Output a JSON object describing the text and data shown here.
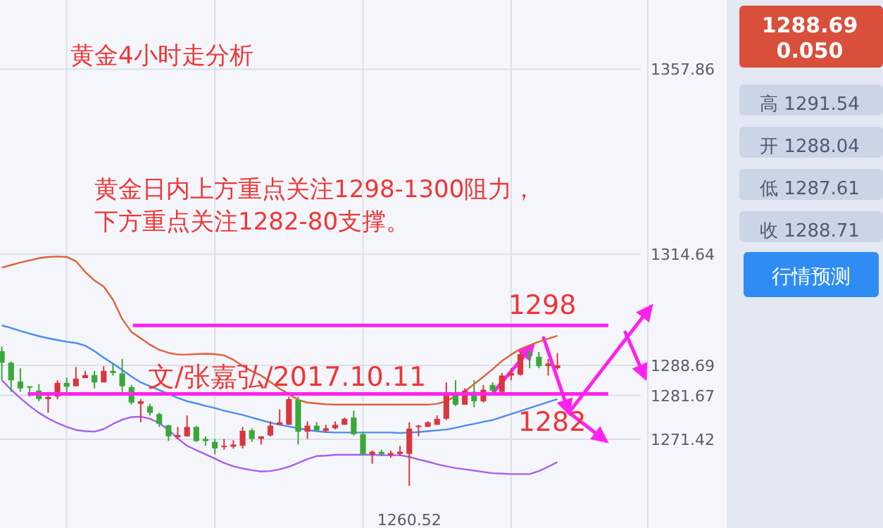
{
  "chart_data": {
    "type": "candlestick",
    "title": "黄金4小时走分析",
    "categories": [
      null,
      null,
      null,
      null,
      null,
      null,
      null,
      null,
      null,
      null,
      null,
      null,
      null,
      null,
      null,
      null,
      null,
      null,
      null,
      null,
      null,
      null,
      null,
      null,
      null,
      null,
      null,
      null,
      null,
      null,
      null,
      null,
      null,
      null,
      null,
      null,
      null,
      null,
      null,
      null,
      null,
      null,
      null,
      null,
      null,
      null,
      null,
      null,
      null,
      null,
      null,
      null,
      null,
      null,
      null,
      null,
      null,
      null,
      null,
      null,
      null
    ],
    "ohlc": [
      [
        1292.0,
        1293.1,
        1285.2,
        1289.3
      ],
      [
        1289.3,
        1289.6,
        1282.5,
        1285.2
      ],
      [
        1284.9,
        1288.0,
        1282.5,
        1283.3
      ],
      [
        1283.8,
        1283.8,
        1281.4,
        1283.5
      ],
      [
        1282.8,
        1284.3,
        1280.3,
        1280.8
      ],
      [
        1280.8,
        1282.5,
        1277.6,
        1281.3
      ],
      [
        1281.4,
        1285.2,
        1280.8,
        1284.6
      ],
      [
        1284.6,
        1285.8,
        1281.9,
        1283.7
      ],
      [
        1283.8,
        1288.3,
        1283.8,
        1285.6
      ],
      [
        1285.7,
        1287.4,
        1285.7,
        1286.4
      ],
      [
        1286.4,
        1287.4,
        1283.3,
        1284.7
      ],
      [
        1284.7,
        1288.5,
        1284.7,
        1287.4
      ],
      [
        1287.4,
        1289.1,
        1286.3,
        1286.9
      ],
      [
        1286.8,
        1290.2,
        1281.9,
        1283.8
      ],
      [
        1283.6,
        1284.1,
        1279.5,
        1280.0
      ],
      [
        1279.7,
        1280.8,
        1275.4,
        1280.3
      ],
      [
        1279.1,
        1279.7,
        1277.0,
        1277.6
      ],
      [
        1277.3,
        1277.6,
        1274.3,
        1275.0
      ],
      [
        1274.7,
        1274.8,
        1271.0,
        1272.1
      ],
      [
        1271.9,
        1274.3,
        1271.5,
        1272.4
      ],
      [
        1272.1,
        1277.0,
        1272.1,
        1274.3
      ],
      [
        1274.3,
        1274.5,
        1270.8,
        1271.0
      ],
      [
        1271.5,
        1272.1,
        1269.9,
        1271.0
      ],
      [
        1270.8,
        1271.5,
        1267.9,
        1269.3
      ],
      [
        1269.6,
        1271.5,
        1269.0,
        1269.9
      ],
      [
        1269.7,
        1271.2,
        1269.2,
        1270.2
      ],
      [
        1269.9,
        1274.3,
        1269.3,
        1273.4
      ],
      [
        1273.5,
        1274.0,
        1270.8,
        1271.5
      ],
      [
        1271.5,
        1272.1,
        1270.2,
        1272.1
      ],
      [
        1272.3,
        1275.6,
        1272.1,
        1274.6
      ],
      [
        1274.8,
        1278.4,
        1274.8,
        1275.4
      ],
      [
        1274.8,
        1281.4,
        1274.8,
        1280.8
      ],
      [
        1280.6,
        1281.4,
        1270.2,
        1273.2
      ],
      [
        1273.2,
        1275.6,
        1271.5,
        1274.6
      ],
      [
        1274.6,
        1275.4,
        1273.2,
        1273.5
      ],
      [
        1273.4,
        1274.8,
        1273.0,
        1274.0
      ],
      [
        1274.0,
        1275.6,
        1273.7,
        1274.8
      ],
      [
        1274.8,
        1276.5,
        1274.8,
        1276.2
      ],
      [
        1276.5,
        1278.1,
        1272.3,
        1272.6
      ],
      [
        1272.6,
        1273.2,
        1267.7,
        1267.9
      ],
      [
        1267.9,
        1268.8,
        1265.7,
        1268.5
      ],
      [
        1268.5,
        1269.0,
        1267.5,
        1267.9
      ],
      [
        1267.7,
        1268.8,
        1267.1,
        1268.2
      ],
      [
        1268.0,
        1269.9,
        1267.5,
        1268.5
      ],
      [
        1268.0,
        1275.4,
        1260.52,
        1273.9
      ],
      [
        1274.3,
        1274.8,
        1272.1,
        1274.6
      ],
      [
        1274.3,
        1275.6,
        1274.3,
        1275.4
      ],
      [
        1274.8,
        1277.0,
        1274.8,
        1276.2
      ],
      [
        1276.2,
        1284.7,
        1275.9,
        1281.9
      ],
      [
        1281.9,
        1285.2,
        1279.2,
        1279.5
      ],
      [
        1279.5,
        1283.3,
        1279.5,
        1282.8
      ],
      [
        1282.5,
        1285.2,
        1278.9,
        1280.3
      ],
      [
        1280.3,
        1284.1,
        1280.0,
        1283.0
      ],
      [
        1284.1,
        1284.7,
        1282.5,
        1282.8
      ],
      [
        1282.5,
        1286.9,
        1281.9,
        1286.3
      ],
      [
        1286.3,
        1288.0,
        1285.2,
        1286.9
      ],
      [
        1286.5,
        1291.8,
        1286.3,
        1291.3
      ],
      [
        1291.5,
        1292.3,
        1288.0,
        1290.9
      ],
      [
        1290.7,
        1291.8,
        1288.0,
        1288.5
      ],
      [
        1288.5,
        1290.2,
        1286.3,
        1289.1
      ],
      [
        1288.04,
        1291.54,
        1287.61,
        1288.71
      ]
    ],
    "colors": [
      "#3aa83a",
      "#3aa83a",
      "#3aa83a",
      "#3aa83a",
      "#3aa83a",
      "#d9363e",
      "#d9363e",
      "#3aa83a",
      "#d9363e",
      "#d9363e",
      "#3aa83a",
      "#d9363e",
      "#3aa83a",
      "#3aa83a",
      "#3aa83a",
      "#d9363e",
      "#3aa83a",
      "#3aa83a",
      "#3aa83a",
      "#d9363e",
      "#d9363e",
      "#3aa83a",
      "#3aa83a",
      "#3aa83a",
      "#d9363e",
      "#d9363e",
      "#d9363e",
      "#3aa83a",
      "#d9363e",
      "#d9363e",
      "#d9363e",
      "#d9363e",
      "#3aa83a",
      "#d9363e",
      "#3aa83a",
      "#d9363e",
      "#d9363e",
      "#d9363e",
      "#3aa83a",
      "#3aa83a",
      "#d9363e",
      "#3aa83a",
      "#d9363e",
      "#d9363e",
      "#d9363e",
      "#d9363e",
      "#d9363e",
      "#d9363e",
      "#d9363e",
      "#3aa83a",
      "#d9363e",
      "#3aa83a",
      "#d9363e",
      "#3aa83a",
      "#d9363e",
      "#d9363e",
      "#d9363e",
      "#3aa83a",
      "#3aa83a",
      "#d9363e",
      "#d9363e"
    ],
    "series": [
      {
        "type": "line",
        "color": "#e0603a",
        "values": [
          1311.5,
          1312.1,
          1312.7,
          1313.2,
          1313.7,
          1314.0,
          1314.1,
          1314.0,
          1313.0,
          1310.5,
          1308.5,
          1307.1,
          1304.0,
          1299.5,
          1296.5,
          1295.0,
          1293.5,
          1292.3,
          1291.6,
          1291.2,
          1291.2,
          1291.3,
          1291.4,
          1291.3,
          1291.0,
          1290.0,
          1288.6,
          1287.3,
          1286.3,
          1284.8,
          1283.2,
          1282.0,
          1280.6,
          1280.0,
          1279.8,
          1279.6,
          1279.5,
          1279.5,
          1279.5,
          1279.5,
          1279.5,
          1279.5,
          1279.5,
          1279.5,
          1279.5,
          1279.5,
          1279.5,
          1279.7,
          1280.3,
          1281.5,
          1282.6,
          1284.3,
          1286.0,
          1287.8,
          1289.7,
          1291.2,
          1292.5,
          1293.4,
          1294.2,
          1294.9,
          1295.6
        ]
      },
      {
        "type": "line",
        "color": "#4a8cf0",
        "values": [
          1298.0,
          1297.4,
          1296.7,
          1296.1,
          1295.5,
          1295.0,
          1294.6,
          1294.2,
          1293.9,
          1293.3,
          1292.0,
          1290.5,
          1289.1,
          1287.6,
          1286.1,
          1284.7,
          1283.8,
          1282.9,
          1282.0,
          1281.1,
          1280.3,
          1279.8,
          1279.2,
          1278.7,
          1278.1,
          1277.6,
          1277.1,
          1276.5,
          1275.9,
          1275.3,
          1274.8,
          1274.4,
          1274.0,
          1273.6,
          1273.3,
          1273.1,
          1273.0,
          1273.0,
          1273.0,
          1273.0,
          1273.0,
          1273.0,
          1273.0,
          1272.9,
          1273.0,
          1273.1,
          1273.3,
          1273.5,
          1273.7,
          1274.1,
          1274.6,
          1275.0,
          1275.5,
          1275.9,
          1276.6,
          1277.3,
          1278.0,
          1278.7,
          1279.4,
          1280.1,
          1280.8
        ]
      },
      {
        "type": "line",
        "color": "#a65ff0",
        "values": [
          1285.2,
          1283.0,
          1281.0,
          1279.2,
          1277.6,
          1276.3,
          1275.2,
          1274.3,
          1273.6,
          1273.3,
          1273.2,
          1273.8,
          1275.0,
          1276.0,
          1276.6,
          1276.7,
          1276.2,
          1275.2,
          1273.6,
          1271.6,
          1269.9,
          1268.9,
          1267.9,
          1266.9,
          1265.9,
          1265.1,
          1264.6,
          1264.2,
          1263.9,
          1264.0,
          1264.4,
          1265.0,
          1265.9,
          1266.8,
          1267.5,
          1267.6,
          1267.8,
          1267.8,
          1267.8,
          1267.8,
          1267.8,
          1267.7,
          1267.7,
          1267.7,
          1267.3,
          1266.7,
          1266.2,
          1265.6,
          1265.1,
          1264.7,
          1264.4,
          1264.1,
          1263.8,
          1263.5,
          1263.4,
          1263.3,
          1263.3,
          1263.3,
          1264.0,
          1265.0,
          1266.1
        ]
      }
    ],
    "ylim": [
      1250.7,
      1374.0
    ],
    "yticks": [
      1357.86,
      1314.64,
      1288.69,
      1281.67,
      1271.42
    ],
    "tick_labels": "y",
    "grid": true,
    "ref_lines": [
      {
        "axis": "y",
        "value": 1298,
        "label": "1298",
        "color": "#ff22ee"
      },
      {
        "axis": "y",
        "value": 1282,
        "label": "1282",
        "color": "#ff22ee"
      }
    ],
    "annotations": [
      "黄金日内上方重点关注1298-1300阻力，",
      "下方重点关注1282-80支撑。",
      "文/张嘉弘/2017.10.11",
      {
        "text": "1260.52",
        "y": 1260.52
      },
      "1288.69",
      "0.050",
      "高 1291.54",
      "开 1288.04",
      "低 1287.61",
      "收 1288.71",
      "行情预测"
    ]
  }
}
